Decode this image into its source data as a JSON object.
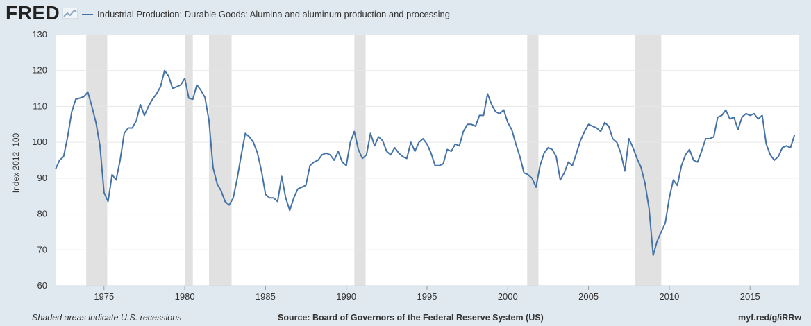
{
  "logo": "FRED",
  "legend": {
    "label": "Industrial Production: Durable Goods: Alumina and aluminum production and processing",
    "color": "#4572a7"
  },
  "footer": {
    "recession_note": "Shaded areas indicate U.S. recessions",
    "source": "Source: Board of Governors of the Federal Reserve System (US)",
    "short_url": "myf.red/g/iRRw"
  },
  "chart_data": {
    "type": "line",
    "ylabel": "Index 2012=100",
    "ylim": [
      60,
      130
    ],
    "yticks": [
      60,
      70,
      80,
      90,
      100,
      110,
      120,
      130
    ],
    "xlim": [
      1972.0,
      2018.0
    ],
    "xticks": [
      1975,
      1980,
      1985,
      1990,
      1995,
      2000,
      2005,
      2010,
      2015
    ],
    "grid": true,
    "recessions": [
      [
        1973.9,
        1975.2
      ],
      [
        1980.0,
        1980.5
      ],
      [
        1981.5,
        1982.9
      ],
      [
        1990.5,
        1991.2
      ],
      [
        2001.2,
        2001.9
      ],
      [
        2007.9,
        2009.5
      ]
    ],
    "series": [
      {
        "name": "Industrial Production: Durable Goods: Alumina and aluminum production and processing",
        "points": [
          [
            1972.0,
            92.5
          ],
          [
            1972.25,
            95.0
          ],
          [
            1972.5,
            96.0
          ],
          [
            1972.75,
            101.5
          ],
          [
            1973.0,
            108.5
          ],
          [
            1973.25,
            112.0
          ],
          [
            1973.5,
            112.3
          ],
          [
            1973.75,
            112.7
          ],
          [
            1974.0,
            114.0
          ],
          [
            1974.25,
            110.0
          ],
          [
            1974.5,
            105.5
          ],
          [
            1974.75,
            99.0
          ],
          [
            1975.0,
            86.0
          ],
          [
            1975.25,
            83.5
          ],
          [
            1975.5,
            91.0
          ],
          [
            1975.75,
            89.5
          ],
          [
            1976.0,
            95.0
          ],
          [
            1976.25,
            102.5
          ],
          [
            1976.5,
            104.0
          ],
          [
            1976.75,
            104.0
          ],
          [
            1977.0,
            106.0
          ],
          [
            1977.25,
            110.5
          ],
          [
            1977.5,
            107.5
          ],
          [
            1977.75,
            110.0
          ],
          [
            1978.0,
            112.0
          ],
          [
            1978.25,
            113.5
          ],
          [
            1978.5,
            115.5
          ],
          [
            1978.75,
            120.0
          ],
          [
            1979.0,
            118.5
          ],
          [
            1979.25,
            115.0
          ],
          [
            1979.5,
            115.5
          ],
          [
            1979.75,
            116.0
          ],
          [
            1980.0,
            117.8
          ],
          [
            1980.25,
            112.3
          ],
          [
            1980.5,
            112.0
          ],
          [
            1980.75,
            116.0
          ],
          [
            1981.0,
            114.5
          ],
          [
            1981.25,
            112.5
          ],
          [
            1981.5,
            106.0
          ],
          [
            1981.75,
            93.0
          ],
          [
            1982.0,
            88.5
          ],
          [
            1982.25,
            86.5
          ],
          [
            1982.5,
            83.5
          ],
          [
            1982.75,
            82.5
          ],
          [
            1983.0,
            84.5
          ],
          [
            1983.25,
            90.0
          ],
          [
            1983.5,
            96.5
          ],
          [
            1983.75,
            102.5
          ],
          [
            1984.0,
            101.5
          ],
          [
            1984.25,
            100.0
          ],
          [
            1984.5,
            97.0
          ],
          [
            1984.75,
            92.0
          ],
          [
            1985.0,
            85.5
          ],
          [
            1985.25,
            84.5
          ],
          [
            1985.5,
            84.5
          ],
          [
            1985.75,
            83.5
          ],
          [
            1986.0,
            90.5
          ],
          [
            1986.25,
            84.5
          ],
          [
            1986.5,
            81.0
          ],
          [
            1986.75,
            84.5
          ],
          [
            1987.0,
            87.0
          ],
          [
            1987.25,
            87.5
          ],
          [
            1987.5,
            88.0
          ],
          [
            1987.75,
            93.5
          ],
          [
            1988.0,
            94.5
          ],
          [
            1988.25,
            95.0
          ],
          [
            1988.5,
            96.5
          ],
          [
            1988.75,
            97.0
          ],
          [
            1989.0,
            96.5
          ],
          [
            1989.25,
            95.0
          ],
          [
            1989.5,
            97.5
          ],
          [
            1989.75,
            94.5
          ],
          [
            1990.0,
            93.5
          ],
          [
            1990.25,
            100.0
          ],
          [
            1990.5,
            103.0
          ],
          [
            1990.75,
            98.0
          ],
          [
            1991.0,
            95.5
          ],
          [
            1991.25,
            96.5
          ],
          [
            1991.5,
            102.5
          ],
          [
            1991.75,
            99.0
          ],
          [
            1992.0,
            101.5
          ],
          [
            1992.25,
            100.5
          ],
          [
            1992.5,
            97.5
          ],
          [
            1992.75,
            96.5
          ],
          [
            1993.0,
            98.5
          ],
          [
            1993.25,
            97.0
          ],
          [
            1993.5,
            96.0
          ],
          [
            1993.75,
            95.5
          ],
          [
            1994.0,
            100.0
          ],
          [
            1994.25,
            97.5
          ],
          [
            1994.5,
            100.0
          ],
          [
            1994.75,
            101.0
          ],
          [
            1995.0,
            99.5
          ],
          [
            1995.25,
            97.0
          ],
          [
            1995.5,
            93.5
          ],
          [
            1995.75,
            93.5
          ],
          [
            1996.0,
            94.0
          ],
          [
            1996.25,
            98.0
          ],
          [
            1996.5,
            97.5
          ],
          [
            1996.75,
            99.5
          ],
          [
            1997.0,
            99.0
          ],
          [
            1997.25,
            103.0
          ],
          [
            1997.5,
            105.0
          ],
          [
            1997.75,
            105.0
          ],
          [
            1998.0,
            104.5
          ],
          [
            1998.25,
            107.5
          ],
          [
            1998.5,
            107.5
          ],
          [
            1998.75,
            113.5
          ],
          [
            1999.0,
            110.5
          ],
          [
            1999.25,
            108.5
          ],
          [
            1999.5,
            108.0
          ],
          [
            1999.75,
            109.0
          ],
          [
            2000.0,
            105.5
          ],
          [
            2000.25,
            103.5
          ],
          [
            2000.5,
            99.5
          ],
          [
            2000.75,
            96.0
          ],
          [
            2001.0,
            91.5
          ],
          [
            2001.25,
            91.0
          ],
          [
            2001.5,
            90.0
          ],
          [
            2001.75,
            87.5
          ],
          [
            2002.0,
            93.5
          ],
          [
            2002.25,
            97.0
          ],
          [
            2002.5,
            98.5
          ],
          [
            2002.75,
            98.0
          ],
          [
            2003.0,
            96.0
          ],
          [
            2003.25,
            89.5
          ],
          [
            2003.5,
            91.5
          ],
          [
            2003.75,
            94.5
          ],
          [
            2004.0,
            93.5
          ],
          [
            2004.25,
            97.0
          ],
          [
            2004.5,
            100.5
          ],
          [
            2004.75,
            103.0
          ],
          [
            2005.0,
            105.0
          ],
          [
            2005.25,
            104.5
          ],
          [
            2005.5,
            104.0
          ],
          [
            2005.75,
            103.0
          ],
          [
            2006.0,
            105.5
          ],
          [
            2006.25,
            104.5
          ],
          [
            2006.5,
            101.0
          ],
          [
            2006.75,
            100.0
          ],
          [
            2007.0,
            97.0
          ],
          [
            2007.25,
            92.0
          ],
          [
            2007.5,
            101.0
          ],
          [
            2007.75,
            98.5
          ],
          [
            2008.0,
            95.5
          ],
          [
            2008.25,
            93.0
          ],
          [
            2008.5,
            88.5
          ],
          [
            2008.75,
            81.5
          ],
          [
            2009.0,
            68.5
          ],
          [
            2009.25,
            72.5
          ],
          [
            2009.5,
            75.0
          ],
          [
            2009.75,
            77.5
          ],
          [
            2010.0,
            84.5
          ],
          [
            2010.25,
            89.5
          ],
          [
            2010.5,
            88.0
          ],
          [
            2010.75,
            93.5
          ],
          [
            2011.0,
            96.5
          ],
          [
            2011.25,
            98.0
          ],
          [
            2011.5,
            95.0
          ],
          [
            2011.75,
            94.5
          ],
          [
            2012.0,
            97.5
          ],
          [
            2012.25,
            101.0
          ],
          [
            2012.5,
            101.0
          ],
          [
            2012.75,
            101.5
          ],
          [
            2013.0,
            107.0
          ],
          [
            2013.25,
            107.5
          ],
          [
            2013.5,
            109.0
          ],
          [
            2013.75,
            106.5
          ],
          [
            2014.0,
            107.0
          ],
          [
            2014.25,
            103.5
          ],
          [
            2014.5,
            107.0
          ],
          [
            2014.75,
            108.0
          ],
          [
            2015.0,
            107.5
          ],
          [
            2015.25,
            108.0
          ],
          [
            2015.5,
            106.5
          ],
          [
            2015.75,
            107.5
          ],
          [
            2016.0,
            99.5
          ],
          [
            2016.25,
            96.5
          ],
          [
            2016.5,
            95.0
          ],
          [
            2016.75,
            96.0
          ],
          [
            2017.0,
            98.5
          ],
          [
            2017.25,
            99.0
          ],
          [
            2017.5,
            98.5
          ],
          [
            2017.75,
            102.0
          ]
        ]
      }
    ]
  }
}
